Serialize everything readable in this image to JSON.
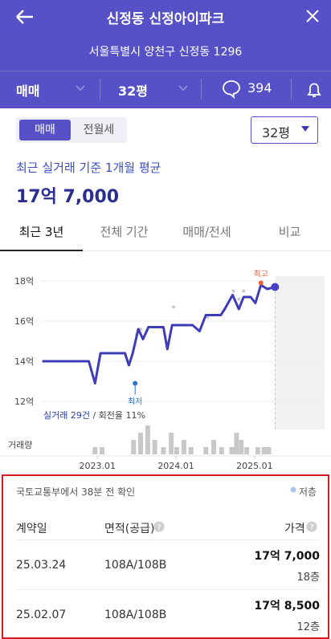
{
  "header": {
    "title": "신정동 신정아이파크",
    "address": "서울특별시 양천구 신정동 1296"
  },
  "filters": {
    "deal": "매매",
    "size": "32평",
    "comments": "394"
  },
  "toggle": {
    "options": [
      "매매",
      "전월세"
    ],
    "size_select": "32평"
  },
  "summary": {
    "label": "최근 실거래 기준 1개월 평균",
    "price": "17억 7,000"
  },
  "period_tabs": [
    "최근 3년",
    "전체 기간",
    "매매/전세",
    "비교"
  ],
  "chart": {
    "type": "line",
    "xlim": [
      2022.17,
      2025.89
    ],
    "ylim": [
      11.4,
      19.28
    ],
    "yticks": [
      {
        "value": 12,
        "label": "12억"
      },
      {
        "value": 14,
        "label": "14억"
      },
      {
        "value": 16,
        "label": "16억"
      },
      {
        "value": 18,
        "label": "18억"
      }
    ],
    "xticks": [
      {
        "value": 2023.0,
        "label": "2023.01"
      },
      {
        "value": 2024.0,
        "label": "2024.01"
      },
      {
        "value": 2025.0,
        "label": "2025.01"
      }
    ],
    "series": [
      {
        "color": "#3f3cb8",
        "x": [
          2022.3,
          2022.89,
          2022.97,
          2023.04,
          2023.35,
          2023.4,
          2023.45,
          2023.52,
          2023.58,
          2023.65,
          2023.84,
          2023.89,
          2023.95,
          2024.21,
          2024.3,
          2024.38,
          2024.57,
          2024.62,
          2024.72,
          2024.8,
          2024.86,
          2024.95,
          2025.01,
          2025.08,
          2025.16,
          2025.26
        ],
        "values": [
          14.0,
          14.0,
          12.9,
          14.4,
          14.4,
          13.8,
          14.4,
          15.6,
          15.1,
          15.7,
          15.7,
          14.6,
          15.8,
          15.8,
          15.5,
          16.3,
          16.3,
          16.6,
          17.3,
          16.6,
          17.2,
          17.2,
          16.9,
          17.8,
          17.6,
          17.7
        ]
      }
    ],
    "transactions": {
      "color": "#c8c8c8",
      "x": [
        2023.5,
        2023.55,
        2023.97,
        2024.4,
        2024.73,
        2024.8,
        2024.86
      ],
      "values": [
        15.3,
        15.6,
        16.7,
        16.2,
        17.5,
        17.1,
        17.5
      ]
    },
    "annotations": [
      {
        "label": "최고",
        "x": 2025.08,
        "y": 17.9,
        "color": "#e8603c"
      },
      {
        "label": "최저",
        "x": 2023.48,
        "y": 12.9,
        "color": "#2f6fd0"
      }
    ],
    "stats": {
      "count": "실거래 29건",
      "turnover": "/ 회전율 11%"
    },
    "volume": {
      "label": "거래량",
      "color": "#c8c8c8",
      "x": [
        2022.97,
        2023.06,
        2023.46,
        2023.55,
        2023.64,
        2023.73,
        2023.84,
        2023.94,
        2024.01,
        2024.1,
        2024.19,
        2024.38,
        2024.48,
        2024.58,
        2024.71,
        2024.77,
        2024.83,
        2024.9,
        2025.04,
        2025.12,
        2025.18
      ],
      "values": [
        1,
        1,
        2,
        3,
        4,
        2,
        1,
        3,
        1,
        2,
        1,
        1,
        2,
        1,
        1,
        3,
        2,
        1,
        1,
        1,
        1
      ]
    }
  },
  "records": {
    "source": "국토교통부에서 38분 전 확인",
    "legend": "저층",
    "columns": [
      "계약일",
      "면적(공급)",
      "가격"
    ],
    "rows": [
      [
        "25.03.24",
        "108A/108B",
        "17억 7,000",
        "18층"
      ],
      [
        "25.02.07",
        "108A/108B",
        "17억 8,500",
        "12층"
      ]
    ]
  }
}
